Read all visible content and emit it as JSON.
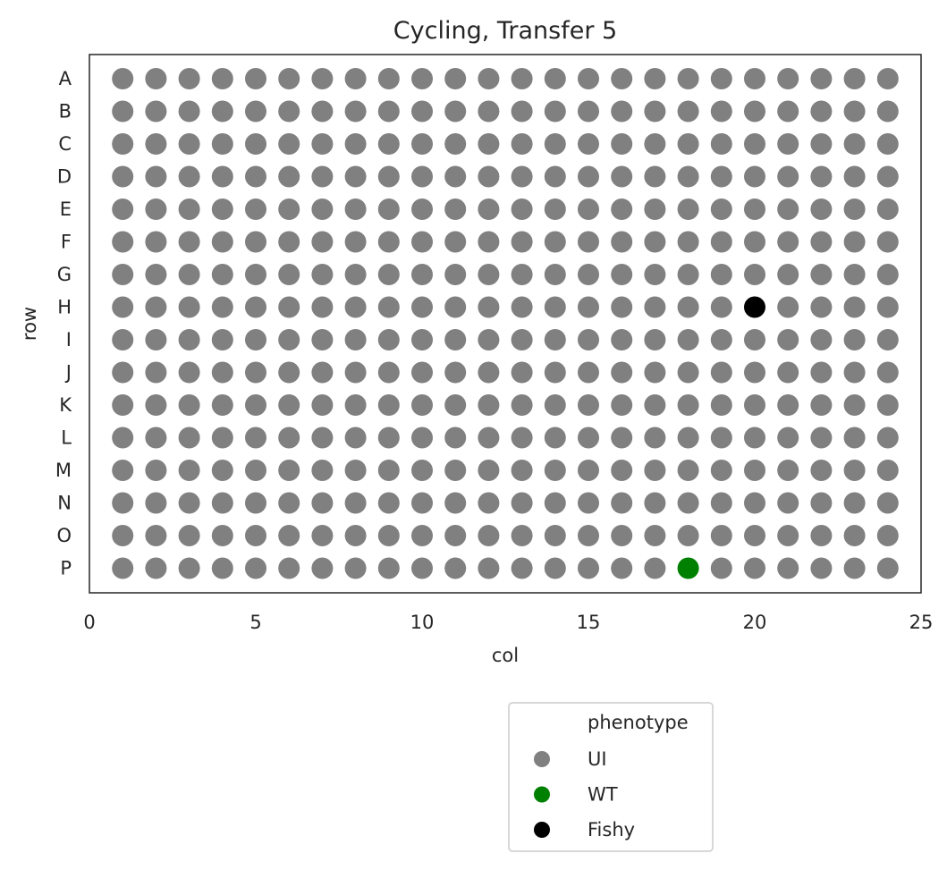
{
  "chart_data": {
    "type": "scatter",
    "title": "Cycling, Transfer 5",
    "xlabel": "col",
    "ylabel": "row",
    "xlim": [
      0,
      25
    ],
    "xticks": [
      0,
      5,
      10,
      15,
      20,
      25
    ],
    "rows": [
      "A",
      "B",
      "C",
      "D",
      "E",
      "F",
      "G",
      "H",
      "I",
      "J",
      "K",
      "L",
      "M",
      "N",
      "O",
      "P"
    ],
    "cols": [
      1,
      2,
      3,
      4,
      5,
      6,
      7,
      8,
      9,
      10,
      11,
      12,
      13,
      14,
      15,
      16,
      17,
      18,
      19,
      20,
      21,
      22,
      23,
      24
    ],
    "grid": false,
    "default_phenotype": "UI",
    "special_points": [
      {
        "row": "H",
        "col": 20,
        "phenotype": "Fishy"
      },
      {
        "row": "P",
        "col": 18,
        "phenotype": "WT"
      }
    ],
    "legend": {
      "title": "phenotype",
      "placement": "below",
      "entries": [
        {
          "label": "UI",
          "color": "#808080"
        },
        {
          "label": "WT",
          "color": "#008000"
        },
        {
          "label": "Fishy",
          "color": "#000000"
        }
      ]
    }
  }
}
